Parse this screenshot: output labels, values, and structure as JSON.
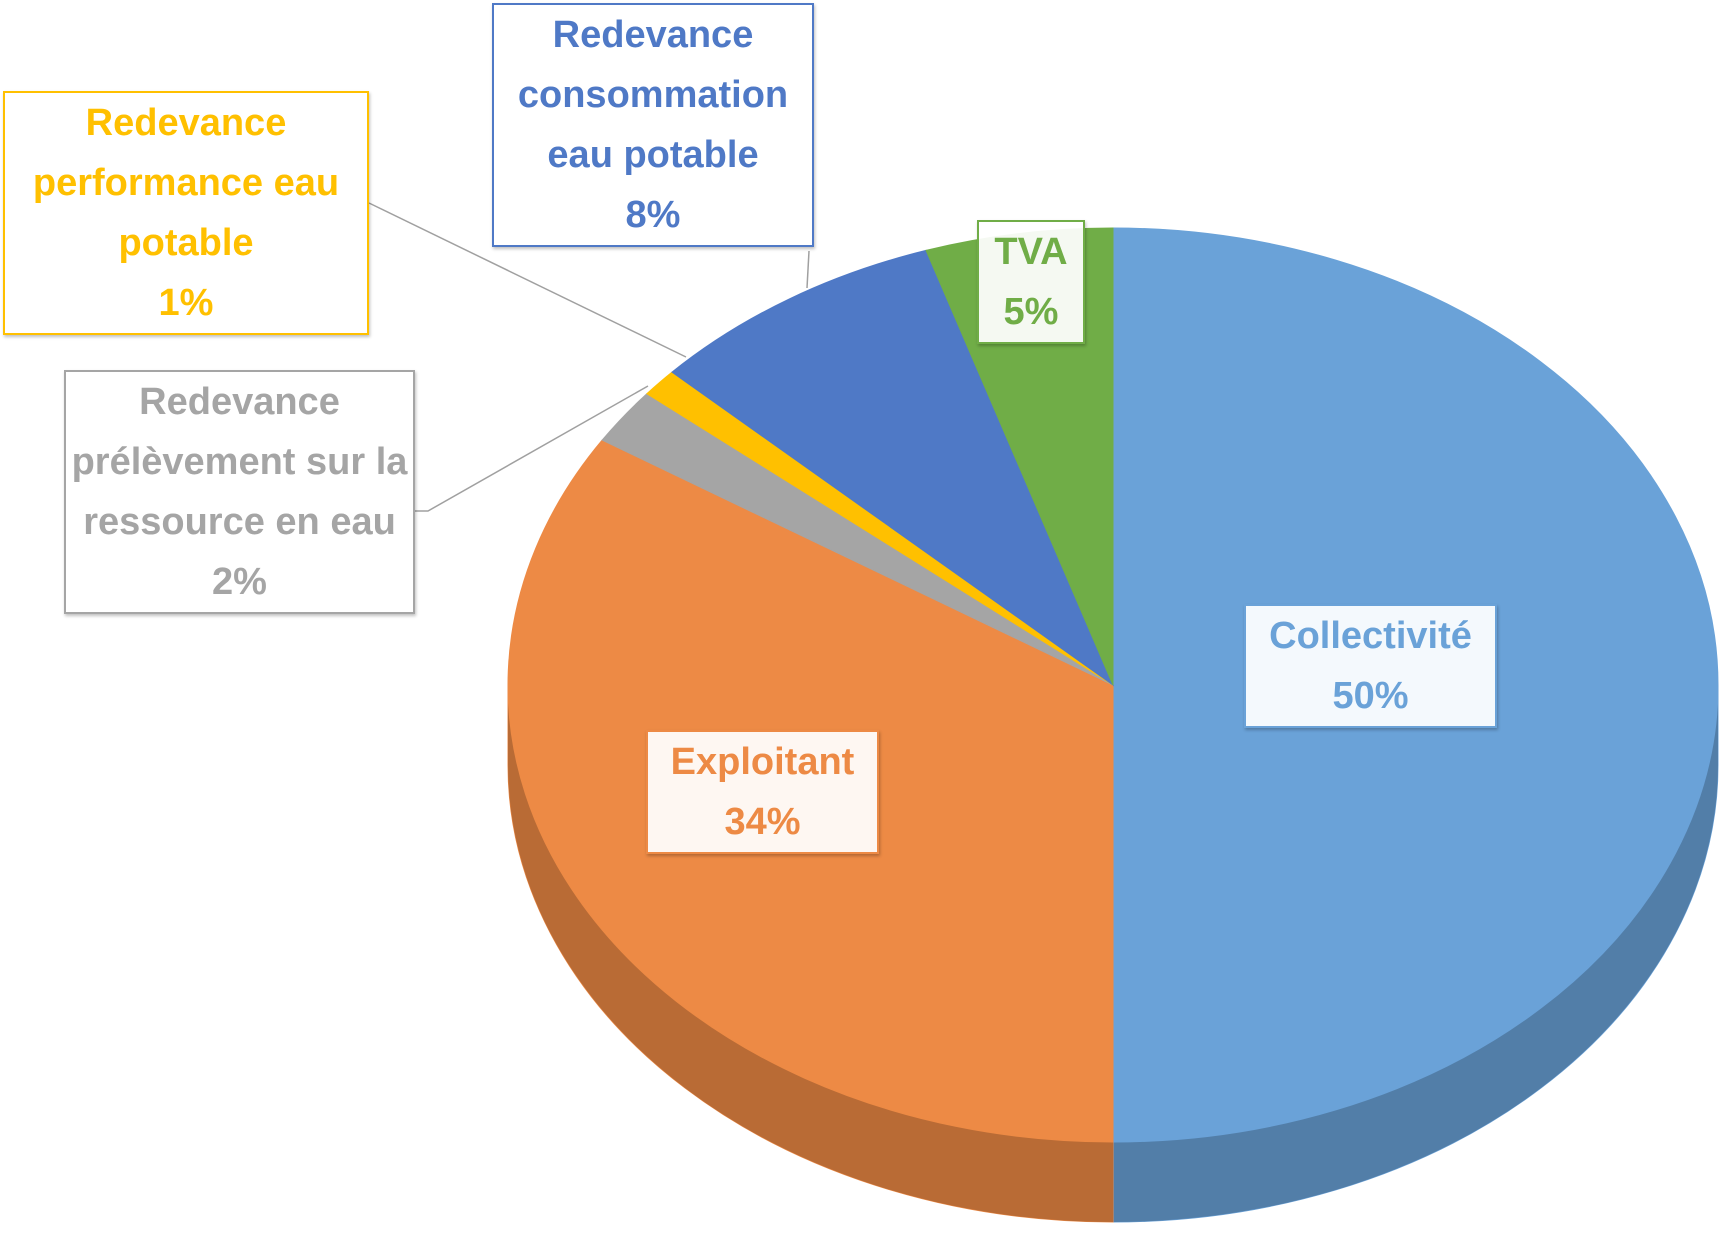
{
  "chart_data": {
    "type": "pie",
    "categories": [
      "Collectivité",
      "Exploitant",
      "Redevance prélèvement sur la ressource en eau",
      "Redevance performance eau potable",
      "Redevance consommation eau potable",
      "TVA"
    ],
    "values": [
      50,
      34,
      2,
      1,
      8,
      5
    ],
    "value_labels": [
      "50%",
      "34%",
      "2%",
      "1%",
      "8%",
      "5%"
    ],
    "colors": [
      "#6aa2d8",
      "#ed8a45",
      "#a5a5a5",
      "#ffc000",
      "#4f79c6",
      "#70ad47"
    ]
  }
}
